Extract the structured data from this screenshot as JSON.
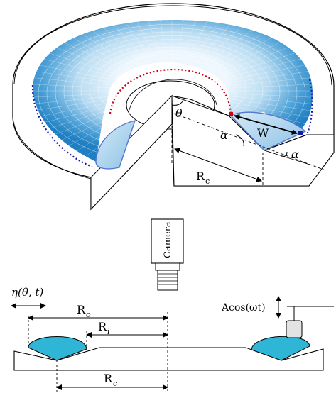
{
  "labels": {
    "theta": "θ",
    "alpha_left": "α",
    "alpha_right": "α",
    "W": "W",
    "Rc_top": "R",
    "Rc_top_sub": "c",
    "camera": "Camera",
    "eta": "η(θ, t)",
    "Ro": "R",
    "Ro_sub": "o",
    "Ri": "R",
    "Ri_sub": "i",
    "Rc_bottom": "R",
    "Rc_bottom_sub": "c",
    "forcing": "Acos(ωt)"
  },
  "colors": {
    "fluid_light": "#d8ecf8",
    "fluid_dark": "#1f7fc2",
    "fluid_section": "#2fb6d6",
    "red_contact": "#d0021b",
    "blue_contact": "#1a1aa8",
    "line": "#000000"
  }
}
